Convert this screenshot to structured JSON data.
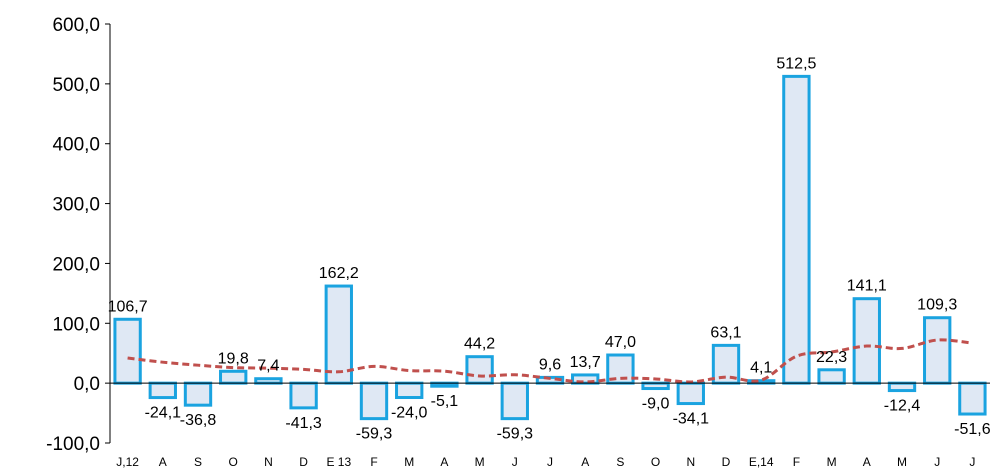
{
  "chart_data": {
    "type": "bar",
    "title": "",
    "xlabel": "",
    "ylabel": "",
    "ylim": [
      -100,
      600
    ],
    "yticks": [
      "-100,0",
      "0,0",
      "100,0",
      "200,0",
      "300,0",
      "400,0",
      "500,0",
      "600,0"
    ],
    "grid": false,
    "categories": [
      "J,12",
      "A",
      "S",
      "O",
      "N",
      "D",
      "E 13",
      "F",
      "M",
      "A",
      "M",
      "J",
      "J",
      "A",
      "S",
      "O",
      "N",
      "D",
      "E,14",
      "F",
      "M",
      "A",
      "M",
      "J",
      "J"
    ],
    "values": [
      106.7,
      -24.1,
      -36.8,
      19.8,
      7.4,
      -41.3,
      162.2,
      -59.3,
      -24.0,
      -5.1,
      44.2,
      -59.3,
      9.6,
      13.7,
      47.0,
      -9.0,
      -34.1,
      63.1,
      4.1,
      512.5,
      22.3,
      141.1,
      -12.4,
      109.3,
      -51.6
    ],
    "value_labels": [
      "106,7",
      "-24,1",
      "-36,8",
      "19,8",
      "7,4",
      "-41,3",
      "162,2",
      "-59,3",
      "-24,0",
      "-5,1",
      "44,2",
      "-59,3",
      "9,6",
      "13,7",
      "47,0",
      "-9,0",
      "-34,1",
      "63,1",
      "4,1",
      "512,5",
      "22,3",
      "141,1",
      "-12,4",
      "109,3",
      "-51,6"
    ],
    "trend": [
      42,
      35,
      30,
      26,
      25,
      23,
      19,
      28,
      21,
      20,
      12,
      14,
      8,
      2,
      8,
      7,
      2,
      10,
      5,
      45,
      52,
      62,
      58,
      72,
      67
    ],
    "colors": {
      "bar_stroke": "#1aa3e0",
      "bar_fill": "#dfe8f4",
      "trend": "#c0504d",
      "axis": "#000000"
    }
  }
}
